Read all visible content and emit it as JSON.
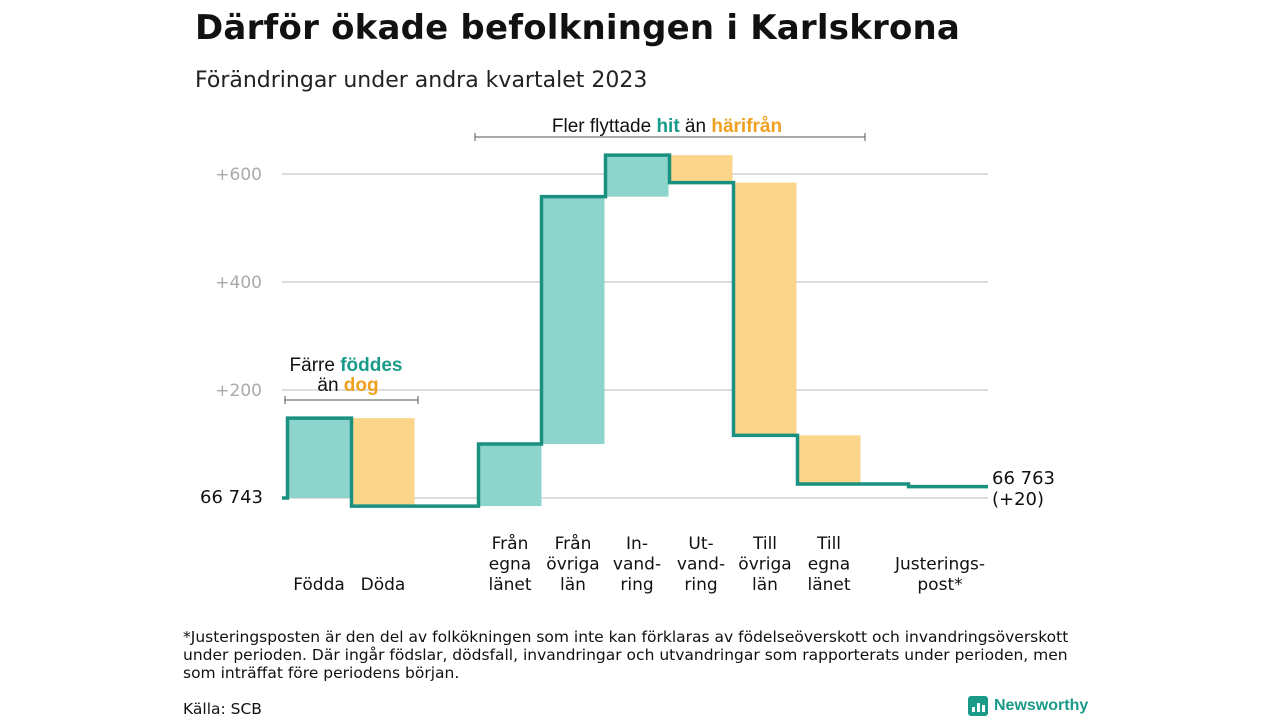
{
  "title": "Därför ökade befolkningen i Karlskrona",
  "subtitle": "Förändringar under andra kvartalet 2023",
  "colors": {
    "positive": "#8dd5cc",
    "negative": "#fbd58a",
    "line": "#1a9080",
    "grid": "#dddddd",
    "axis_text": "#aaaaaa",
    "teal_text": "#1a9b8a",
    "orange_text": "#f0a020"
  },
  "chart_data": {
    "type": "waterfall",
    "start": {
      "value": 66743,
      "label": "66  743"
    },
    "end": {
      "value": 66763,
      "label": "66 763",
      "change_label": "(+20)"
    },
    "ylim": [
      0,
      640
    ],
    "yticks": [
      {
        "value": 200,
        "label": "+200"
      },
      {
        "value": 400,
        "label": "+400"
      },
      {
        "value": 600,
        "label": "+600"
      }
    ],
    "grid": true,
    "steps": [
      {
        "label_lines": [
          "Födda"
        ],
        "change": 148,
        "sign": "positive"
      },
      {
        "label_lines": [
          "Döda"
        ],
        "change": -163,
        "sign": "negative"
      },
      {
        "label_lines": [
          "Från",
          "egna",
          "länet"
        ],
        "change": 115,
        "sign": "positive"
      },
      {
        "label_lines": [
          "Från",
          "övriga",
          "län"
        ],
        "change": 458,
        "sign": "positive"
      },
      {
        "label_lines": [
          "In-",
          "vand-",
          "ring"
        ],
        "change": 77,
        "sign": "positive"
      },
      {
        "label_lines": [
          "Ut-",
          "vand-",
          "ring"
        ],
        "change": -51,
        "sign": "negative"
      },
      {
        "label_lines": [
          "Till",
          "övriga",
          "län"
        ],
        "change": -468,
        "sign": "negative"
      },
      {
        "label_lines": [
          "Till",
          "egna",
          "länet"
        ],
        "change": -90,
        "sign": "negative"
      },
      {
        "label_lines": [
          "Justerings-",
          "post*"
        ],
        "change": -5,
        "sign": "negative"
      }
    ],
    "annotations": [
      {
        "id": "births",
        "line1_prefix": "Färre ",
        "line1_highlight": "föddes",
        "line2_prefix": "än ",
        "line2_highlight": "dog"
      },
      {
        "id": "migration",
        "prefix": "Fler flyttade ",
        "highlight1": "hit",
        "middle": " än ",
        "highlight2": "härifrån"
      }
    ]
  },
  "footnote": "*Justeringsposten är den del av folkökningen som inte kan förklaras av födelseöverskott och invandringsöverskott under perioden. Där ingår födslar, dödsfall, invandringar och utvandringar som rapporterats under perioden, men som inträffat före periodens början.",
  "source": "Källa: SCB",
  "brand": {
    "name": "Newsworthy",
    "icon": "bar-chart-icon"
  }
}
